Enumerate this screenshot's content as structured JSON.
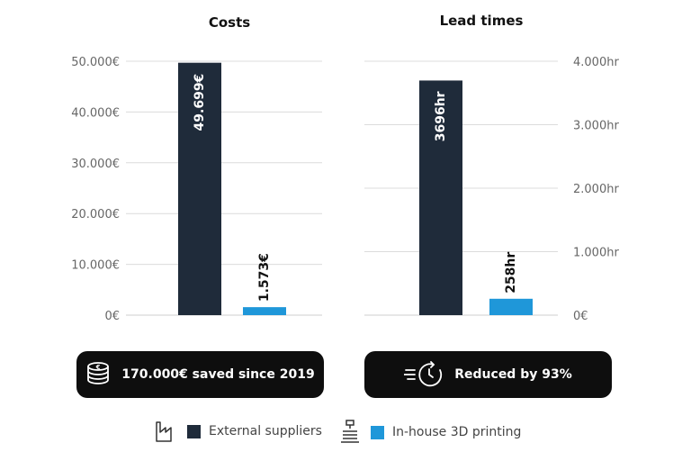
{
  "chart_data": [
    {
      "type": "bar",
      "title": "Costs",
      "categories": [
        "External suppliers",
        "In-house 3D printing"
      ],
      "values": [
        49699,
        1573
      ],
      "value_labels": [
        "49.699€",
        "1.573€"
      ],
      "colors": [
        "#1f2b3a",
        "#1f97d9"
      ],
      "ylim": [
        0,
        50000
      ],
      "y_ticks": [
        0,
        10000,
        20000,
        30000,
        40000,
        50000
      ],
      "y_tick_labels": [
        "0€",
        "10.000€",
        "20.000€",
        "30.000€",
        "40.000€",
        "50.000€"
      ],
      "y_axis_side": "left",
      "grid": true
    },
    {
      "type": "bar",
      "title": "Lead times",
      "categories": [
        "External suppliers",
        "In-house 3D printing"
      ],
      "values": [
        3696,
        258
      ],
      "value_labels": [
        "3696hr",
        "258hr"
      ],
      "colors": [
        "#1f2b3a",
        "#1f97d9"
      ],
      "ylim": [
        0,
        4000
      ],
      "y_ticks": [
        0,
        1000,
        2000,
        3000,
        4000
      ],
      "y_tick_labels": [
        "0€",
        "1.000hr",
        "2.000hr",
        "3.000hr",
        "4.000hr"
      ],
      "y_axis_side": "right",
      "grid": true
    }
  ],
  "callouts": {
    "costs": {
      "text": "170.000€ saved since 2019",
      "icon": "coin-stack-icon"
    },
    "lead_times": {
      "text": "Reduced by 93%",
      "icon": "fast-clock-icon"
    }
  },
  "legend": [
    {
      "label": "External suppliers",
      "color": "#1f2b3a",
      "icon": "factory-icon"
    },
    {
      "label": "In-house 3D printing",
      "color": "#1f97d9",
      "icon": "3d-printer-icon"
    }
  ]
}
